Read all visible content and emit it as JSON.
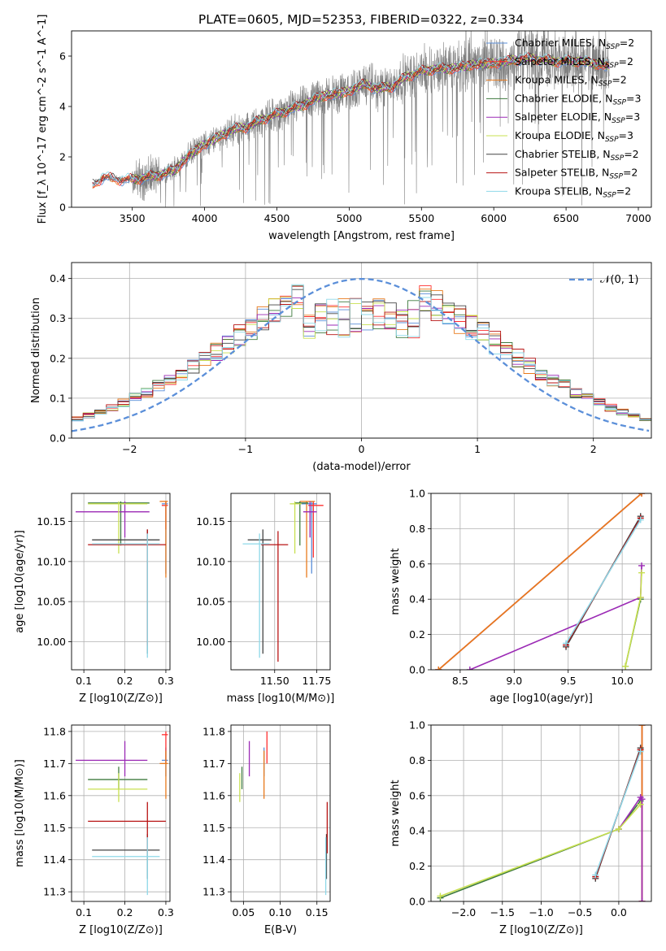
{
  "figure_title": "PLATE=0605, MJD=52353, FIBERID=0322, z=0.334",
  "colors": {
    "Chabrier MILES": "#5b8fd9",
    "Salpeter MILES": "#ff3030",
    "Kroupa MILES": "#e87a1c",
    "Chabrier ELODIE": "#3e7a3e",
    "Salpeter ELODIE": "#9b2ab5",
    "Kroupa ELODIE": "#c8e050",
    "Chabrier STELIB": "#444444",
    "Salpeter STELIB": "#b81414",
    "Kroupa STELIB": "#8ed8e8",
    "data": "#808080"
  },
  "chart_data": [
    {
      "id": "spectrum",
      "type": "line",
      "title": "PLATE=0605, MJD=52353, FIBERID=0322, z=0.334",
      "xlabel": "wavelength [Angstrom, rest frame]",
      "ylabel": "Flux [f_λ 10^-17 erg cm^-2 s^-1 A^-1]",
      "xlim": [
        3080,
        7090
      ],
      "ylim": [
        0,
        7.0
      ],
      "xticks": [
        3500,
        4000,
        4500,
        5000,
        5500,
        6000,
        6500,
        7000
      ],
      "yticks": [
        0,
        2,
        4,
        6
      ],
      "legend_position": "top-right",
      "legend": [
        "Chabrier MILES, N_SSP=2",
        "Salpeter MILES, N_SSP=2",
        "Kroupa MILES, N_SSP=2",
        "Chabrier ELODIE, N_SSP=3",
        "Salpeter ELODIE, N_SSP=3",
        "Kroupa ELODIE, N_SSP=3",
        "Chabrier STELIB, N_SSP=2",
        "Salpeter STELIB, N_SSP=2",
        "Kroupa STELIB, N_SSP=2"
      ],
      "continuum_x": [
        3230,
        3300,
        3400,
        3500,
        3600,
        3700,
        3800,
        3900,
        4000,
        4100,
        4200,
        4300,
        4400,
        4500,
        4600,
        4700,
        4800,
        4900,
        5000,
        5100,
        5200,
        5300,
        5400,
        5500,
        5600,
        5700,
        5800,
        5900,
        6000,
        6100,
        6200,
        6300,
        6400,
        6500,
        6600,
        6700,
        6800
      ],
      "continuum_y": [
        0.9,
        1.2,
        1.1,
        1.1,
        1.2,
        1.3,
        1.5,
        2.1,
        2.5,
        2.8,
        3.1,
        3.2,
        3.5,
        3.7,
        3.9,
        4.1,
        4.4,
        4.5,
        4.6,
        4.9,
        4.7,
        4.8,
        5.2,
        5.4,
        5.5,
        5.5,
        5.6,
        5.7,
        5.7,
        5.8,
        5.9,
        5.9,
        5.8,
        5.8,
        5.8,
        5.7,
        5.6
      ]
    },
    {
      "id": "residuals",
      "type": "line",
      "xlabel": "(data-model)/error",
      "ylabel": "Normed distribution",
      "xlim": [
        -2.5,
        2.5
      ],
      "ylim": [
        0,
        0.44
      ],
      "xticks": [
        -2,
        -1,
        0,
        1,
        2
      ],
      "yticks": [
        0.0,
        0.1,
        0.2,
        0.3,
        0.4
      ],
      "legend_position": "top-right",
      "legend": [
        "𝒩(0, 1)"
      ],
      "gaussian": {
        "mean": 0,
        "sigma": 1
      }
    },
    {
      "id": "age-vs-z",
      "type": "scatter",
      "xlabel": "Z [log10(Z/Z⊙)]",
      "ylabel": "age  [log10(age/yr)]",
      "xlim": [
        0.07,
        0.31
      ],
      "ylim": [
        9.965,
        10.185
      ],
      "xticks": [
        0.1,
        0.2,
        0.3
      ],
      "yticks": [
        10.0,
        10.05,
        10.1,
        10.15
      ],
      "points": [
        {
          "model": "Chabrier MILES",
          "x": 0.3,
          "xlo": 0.29,
          "xhi": 0.305,
          "y": 10.172,
          "ylo": 10.085,
          "yhi": 10.175
        },
        {
          "model": "Salpeter MILES",
          "x": 0.3,
          "xlo": 0.29,
          "xhi": 0.305,
          "y": 10.17,
          "ylo": 10.14,
          "yhi": 10.175
        },
        {
          "model": "Kroupa MILES",
          "x": 0.3,
          "xlo": 0.285,
          "xhi": 0.305,
          "y": 10.175,
          "ylo": 10.08,
          "yhi": 10.175
        },
        {
          "model": "Chabrier ELODIE",
          "x": 0.19,
          "xlo": 0.11,
          "xhi": 0.26,
          "y": 10.173,
          "ylo": 10.12,
          "yhi": 10.175
        },
        {
          "model": "Salpeter ELODIE",
          "x": 0.2,
          "xlo": 0.08,
          "xhi": 0.26,
          "y": 10.162,
          "ylo": 10.13,
          "yhi": 10.175
        },
        {
          "model": "Kroupa ELODIE",
          "x": 0.185,
          "xlo": 0.11,
          "xhi": 0.255,
          "y": 10.172,
          "ylo": 10.11,
          "yhi": 10.175
        },
        {
          "model": "Chabrier STELIB",
          "x": 0.255,
          "xlo": 0.12,
          "xhi": 0.285,
          "y": 10.127,
          "ylo": 9.985,
          "yhi": 10.14
        },
        {
          "model": "Salpeter STELIB",
          "x": 0.255,
          "xlo": 0.11,
          "xhi": 0.3,
          "y": 10.121,
          "ylo": 9.995,
          "yhi": 10.14
        },
        {
          "model": "Kroupa STELIB",
          "x": 0.255,
          "xlo": 0.12,
          "xhi": 0.285,
          "y": 10.122,
          "ylo": 9.98,
          "yhi": 10.135
        }
      ]
    },
    {
      "id": "age-vs-mass",
      "type": "scatter",
      "xlabel": "mass [log10(M/M⊙)]",
      "ylabel": "",
      "xlim": [
        11.24,
        11.83
      ],
      "ylim": [
        9.965,
        10.185
      ],
      "xticks": [
        11.5,
        11.75
      ],
      "yticks": [
        10.0,
        10.05,
        10.1,
        10.15
      ],
      "points": [
        {
          "model": "Chabrier MILES",
          "x": 11.72,
          "xlo": 11.66,
          "xhi": 11.75,
          "y": 10.172,
          "ylo": 10.085,
          "yhi": 10.175
        },
        {
          "model": "Salpeter MILES",
          "x": 11.73,
          "xlo": 11.7,
          "xhi": 11.79,
          "y": 10.17,
          "ylo": 10.105,
          "yhi": 10.175
        },
        {
          "model": "Kroupa MILES",
          "x": 11.69,
          "xlo": 11.65,
          "xhi": 11.74,
          "y": 10.175,
          "ylo": 10.08,
          "yhi": 10.175
        },
        {
          "model": "Chabrier ELODIE",
          "x": 11.65,
          "xlo": 11.62,
          "xhi": 11.7,
          "y": 10.173,
          "ylo": 10.12,
          "yhi": 10.175
        },
        {
          "model": "Salpeter ELODIE",
          "x": 11.71,
          "xlo": 11.67,
          "xhi": 11.75,
          "y": 10.162,
          "ylo": 10.13,
          "yhi": 10.175
        },
        {
          "model": "Kroupa ELODIE",
          "x": 11.62,
          "xlo": 11.59,
          "xhi": 11.66,
          "y": 10.172,
          "ylo": 10.11,
          "yhi": 10.175
        },
        {
          "model": "Chabrier STELIB",
          "x": 11.43,
          "xlo": 11.34,
          "xhi": 11.48,
          "y": 10.127,
          "ylo": 9.985,
          "yhi": 10.14
        },
        {
          "model": "Salpeter STELIB",
          "x": 11.52,
          "xlo": 11.42,
          "xhi": 11.58,
          "y": 10.121,
          "ylo": 9.975,
          "yhi": 10.138
        },
        {
          "model": "Kroupa STELIB",
          "x": 11.41,
          "xlo": 11.31,
          "xhi": 11.47,
          "y": 10.122,
          "ylo": 9.98,
          "yhi": 10.135
        }
      ]
    },
    {
      "id": "weight-vs-age",
      "type": "line",
      "xlabel": "age  [log10(age/yr)]",
      "ylabel": "mass weight",
      "xlim": [
        8.23,
        10.27
      ],
      "ylim": [
        0,
        1.0
      ],
      "xticks": [
        8.5,
        9.0,
        9.5,
        10.0
      ],
      "yticks": [
        0.0,
        0.2,
        0.4,
        0.6,
        0.8,
        1.0
      ],
      "series": [
        {
          "model": "Chabrier MILES",
          "x": [
            8.3,
            10.18
          ],
          "y": [
            0.0,
            1.0
          ]
        },
        {
          "model": "Salpeter MILES",
          "x": [
            8.3,
            10.18
          ],
          "y": [
            0.0,
            1.0
          ]
        },
        {
          "model": "Kroupa MILES",
          "x": [
            8.3,
            10.18
          ],
          "y": [
            0.0,
            1.0
          ]
        },
        {
          "model": "Chabrier ELODIE",
          "x": [
            10.03,
            10.17
          ],
          "y": [
            0.02,
            0.4
          ]
        },
        {
          "model": "Salpeter ELODIE",
          "x": [
            8.59,
            10.17,
            10.18
          ],
          "y": [
            0.0,
            0.41,
            0.59
          ]
        },
        {
          "model": "Kroupa ELODIE",
          "x": [
            10.03,
            10.17,
            10.18
          ],
          "y": [
            0.02,
            0.41,
            0.55
          ]
        },
        {
          "model": "Chabrier STELIB",
          "x": [
            9.48,
            10.17
          ],
          "y": [
            0.13,
            0.87
          ]
        },
        {
          "model": "Salpeter STELIB",
          "x": [
            9.48,
            10.17
          ],
          "y": [
            0.14,
            0.86
          ]
        },
        {
          "model": "Kroupa STELIB",
          "x": [
            9.48,
            10.17
          ],
          "y": [
            0.15,
            0.85
          ]
        }
      ]
    },
    {
      "id": "mass-vs-z",
      "type": "scatter",
      "xlabel": "Z [log10(Z/Z⊙)]",
      "ylabel": "mass [log10(M/M⊙)]",
      "xlim": [
        0.07,
        0.31
      ],
      "ylim": [
        11.27,
        11.82
      ],
      "xticks": [
        0.1,
        0.2,
        0.3
      ],
      "yticks": [
        11.3,
        11.4,
        11.5,
        11.6,
        11.7,
        11.8
      ],
      "points": [
        {
          "model": "Chabrier MILES",
          "x": 0.3,
          "xlo": 0.29,
          "xhi": 0.305,
          "y": 11.71,
          "ylo": 11.66,
          "yhi": 11.75
        },
        {
          "model": "Salpeter MILES",
          "x": 0.3,
          "xlo": 0.29,
          "xhi": 0.305,
          "y": 11.79,
          "ylo": 11.7,
          "yhi": 11.8
        },
        {
          "model": "Kroupa MILES",
          "x": 0.3,
          "xlo": 0.285,
          "xhi": 0.305,
          "y": 11.7,
          "ylo": 11.59,
          "yhi": 11.74
        },
        {
          "model": "Chabrier ELODIE",
          "x": 0.185,
          "xlo": 0.11,
          "xhi": 0.255,
          "y": 11.65,
          "ylo": 11.62,
          "yhi": 11.69
        },
        {
          "model": "Salpeter ELODIE",
          "x": 0.2,
          "xlo": 0.08,
          "xhi": 0.255,
          "y": 11.71,
          "ylo": 11.66,
          "yhi": 11.77
        },
        {
          "model": "Kroupa ELODIE",
          "x": 0.185,
          "xlo": 0.11,
          "xhi": 0.255,
          "y": 11.62,
          "ylo": 11.58,
          "yhi": 11.67
        },
        {
          "model": "Chabrier STELIB",
          "x": 0.255,
          "xlo": 0.12,
          "xhi": 0.285,
          "y": 11.43,
          "ylo": 11.34,
          "yhi": 11.48
        },
        {
          "model": "Salpeter STELIB",
          "x": 0.255,
          "xlo": 0.11,
          "xhi": 0.3,
          "y": 11.52,
          "ylo": 11.42,
          "yhi": 11.58
        },
        {
          "model": "Kroupa STELIB",
          "x": 0.255,
          "xlo": 0.12,
          "xhi": 0.285,
          "y": 11.41,
          "ylo": 11.29,
          "yhi": 11.47
        }
      ]
    },
    {
      "id": "mass-vs-ebv",
      "type": "scatter",
      "xlabel": "E(B-V)",
      "ylabel": "",
      "xlim": [
        0.033,
        0.168
      ],
      "ylim": [
        11.27,
        11.82
      ],
      "xticks": [
        0.05,
        0.1,
        0.15
      ],
      "yticks": [
        11.3,
        11.4,
        11.5,
        11.6,
        11.7,
        11.8
      ],
      "points": [
        {
          "model": "Chabrier MILES",
          "x": 0.078,
          "xlo": 0.078,
          "xhi": 0.078,
          "y": 11.71,
          "ylo": 11.66,
          "yhi": 11.75
        },
        {
          "model": "Salpeter MILES",
          "x": 0.082,
          "xlo": 0.082,
          "xhi": 0.082,
          "y": 11.79,
          "ylo": 11.7,
          "yhi": 11.8
        },
        {
          "model": "Kroupa MILES",
          "x": 0.078,
          "xlo": 0.078,
          "xhi": 0.078,
          "y": 11.7,
          "ylo": 11.59,
          "yhi": 11.74
        },
        {
          "model": "Chabrier ELODIE",
          "x": 0.048,
          "xlo": 0.048,
          "xhi": 0.048,
          "y": 11.65,
          "ylo": 11.62,
          "yhi": 11.69
        },
        {
          "model": "Salpeter ELODIE",
          "x": 0.058,
          "xlo": 0.058,
          "xhi": 0.058,
          "y": 11.71,
          "ylo": 11.66,
          "yhi": 11.77
        },
        {
          "model": "Kroupa ELODIE",
          "x": 0.045,
          "xlo": 0.045,
          "xhi": 0.045,
          "y": 11.62,
          "ylo": 11.58,
          "yhi": 11.67
        },
        {
          "model": "Chabrier STELIB",
          "x": 0.163,
          "xlo": 0.163,
          "xhi": 0.163,
          "y": 11.43,
          "ylo": 11.34,
          "yhi": 11.48
        },
        {
          "model": "Salpeter STELIB",
          "x": 0.164,
          "xlo": 0.164,
          "xhi": 0.164,
          "y": 11.52,
          "ylo": 11.42,
          "yhi": 11.58
        },
        {
          "model": "Kroupa STELIB",
          "x": 0.162,
          "xlo": 0.162,
          "xhi": 0.162,
          "y": 11.41,
          "ylo": 11.29,
          "yhi": 11.47
        }
      ]
    },
    {
      "id": "weight-vs-z",
      "type": "line",
      "xlabel": "Z [log10(Z/Z⊙)]",
      "ylabel": "mass weight",
      "xlim": [
        -2.42,
        0.42
      ],
      "ylim": [
        0,
        1.0
      ],
      "xticks": [
        -2.0,
        -1.5,
        -1.0,
        -0.5,
        0.0
      ],
      "yticks": [
        0.0,
        0.2,
        0.4,
        0.6,
        0.8,
        1.0
      ],
      "series": [
        {
          "model": "Chabrier MILES",
          "x": [
            0.3,
            0.3
          ],
          "y": [
            0.0,
            1.0
          ]
        },
        {
          "model": "Salpeter MILES",
          "x": [
            0.3,
            0.3
          ],
          "y": [
            0.0,
            1.0
          ]
        },
        {
          "model": "Kroupa MILES",
          "x": [
            0.3,
            0.3
          ],
          "y": [
            0.0,
            1.0
          ]
        },
        {
          "model": "Chabrier ELODIE",
          "x": [
            -2.3,
            0.0,
            0.28
          ],
          "y": [
            0.02,
            0.41,
            0.57
          ]
        },
        {
          "model": "Salpeter ELODIE",
          "x": [
            0.0,
            0.28,
            0.3,
            0.3
          ],
          "y": [
            0.41,
            0.59,
            0.58,
            0.0
          ]
        },
        {
          "model": "Kroupa ELODIE",
          "x": [
            -2.3,
            0.0,
            0.28
          ],
          "y": [
            0.03,
            0.41,
            0.55
          ]
        },
        {
          "model": "Chabrier STELIB",
          "x": [
            -0.3,
            0.28
          ],
          "y": [
            0.13,
            0.87
          ]
        },
        {
          "model": "Salpeter STELIB",
          "x": [
            -0.3,
            0.28
          ],
          "y": [
            0.14,
            0.86
          ]
        },
        {
          "model": "Kroupa STELIB",
          "x": [
            -0.3,
            0.28
          ],
          "y": [
            0.15,
            0.85
          ]
        }
      ]
    }
  ]
}
